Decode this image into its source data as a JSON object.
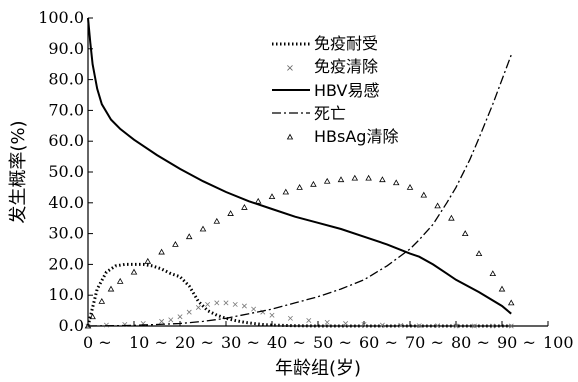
{
  "chart_data": {
    "type": "line",
    "xlabel": "年龄组(岁)",
    "ylabel": "发生概率(%)",
    "xlim": [
      0,
      100
    ],
    "ylim": [
      0,
      100
    ],
    "x_ticks": [
      "0 ~",
      "10 ~",
      "20 ~",
      "30 ~",
      "40 ~",
      "50 ~",
      "60 ~",
      "70 ~",
      "80 ~",
      "90 ~",
      "100 ~"
    ],
    "y_ticks": [
      "0.0",
      "10.0",
      "20.0",
      "30.0",
      "40.0",
      "50.0",
      "60.0",
      "70.0",
      "80.0",
      "90.0",
      "100.0"
    ],
    "grid": false,
    "legend_position": "top-right",
    "series": [
      {
        "name": "免疫耐受",
        "style": "dotted",
        "x": [
          0,
          2,
          4,
          6,
          8,
          10,
          12,
          14,
          16,
          18,
          20,
          22,
          24,
          26,
          28,
          30,
          32,
          34,
          36,
          38,
          40,
          45,
          50,
          55,
          60,
          65,
          70,
          75,
          80,
          85,
          92
        ],
        "y": [
          0,
          12,
          17.5,
          19.5,
          20,
          20,
          20,
          19.5,
          18.5,
          17,
          16,
          13,
          8,
          5,
          3.5,
          2.5,
          1.8,
          1.2,
          0.8,
          0.5,
          0.3,
          0.1,
          0,
          0,
          0,
          0,
          0,
          0,
          0,
          0,
          0
        ]
      },
      {
        "name": "免疫清除",
        "style": "x-markers",
        "x": [
          0,
          4,
          8,
          12,
          16,
          18,
          20,
          22,
          24,
          26,
          28,
          30,
          32,
          34,
          36,
          38,
          40,
          44,
          48,
          52,
          56,
          60,
          64,
          68,
          72,
          76,
          80,
          84,
          88,
          92
        ],
        "y": [
          0,
          0.3,
          0.5,
          0.8,
          1.5,
          2,
          3,
          4.5,
          6,
          7,
          7.5,
          7.5,
          7,
          6.5,
          5.5,
          4.5,
          3.5,
          2.5,
          1.8,
          1.2,
          0.8,
          0.5,
          0.3,
          0.2,
          0.1,
          0.1,
          0,
          0,
          0,
          0
        ]
      },
      {
        "name": "HBV易感",
        "style": "solid",
        "x": [
          0,
          0.5,
          1,
          2,
          3,
          5,
          7,
          10,
          15,
          20,
          25,
          30,
          35,
          40,
          45,
          50,
          55,
          60,
          65,
          70,
          72,
          75,
          78,
          80,
          85,
          90,
          92
        ],
        "y": [
          100,
          92,
          85,
          77,
          72,
          67,
          64,
          60.5,
          55.5,
          51,
          47,
          43.5,
          40.5,
          38,
          35.5,
          33.5,
          31.5,
          29,
          26.5,
          23.5,
          22.5,
          20,
          17,
          15,
          11,
          6.5,
          4
        ]
      },
      {
        "name": "死亡",
        "style": "dash-dot",
        "x": [
          0,
          10,
          20,
          25,
          30,
          35,
          40,
          45,
          50,
          55,
          60,
          65,
          70,
          72,
          75,
          78,
          80,
          83,
          85,
          88,
          90,
          92
        ],
        "y": [
          0,
          0.2,
          0.8,
          1.5,
          2.5,
          4,
          5.5,
          7.5,
          9.5,
          12,
          15,
          19.5,
          25,
          28,
          33,
          40,
          45,
          54,
          61,
          72,
          80,
          88
        ]
      },
      {
        "name": "HBsAg清除",
        "style": "triangle-markers",
        "x": [
          0,
          1,
          3,
          5,
          7,
          10,
          13,
          16,
          19,
          22,
          25,
          28,
          31,
          34,
          37,
          40,
          43,
          46,
          49,
          52,
          55,
          58,
          61,
          64,
          67,
          70,
          73,
          76,
          79,
          82,
          85,
          88,
          90,
          92
        ],
        "y": [
          0,
          3,
          8,
          12,
          14.5,
          17.5,
          21,
          24,
          26.5,
          29,
          31.5,
          34,
          36.5,
          38.5,
          40.5,
          42,
          43.5,
          45,
          46,
          47,
          47.5,
          48,
          48,
          47.5,
          46.5,
          45,
          42.5,
          39,
          35,
          30,
          23.5,
          17,
          12,
          7.5
        ]
      }
    ]
  }
}
